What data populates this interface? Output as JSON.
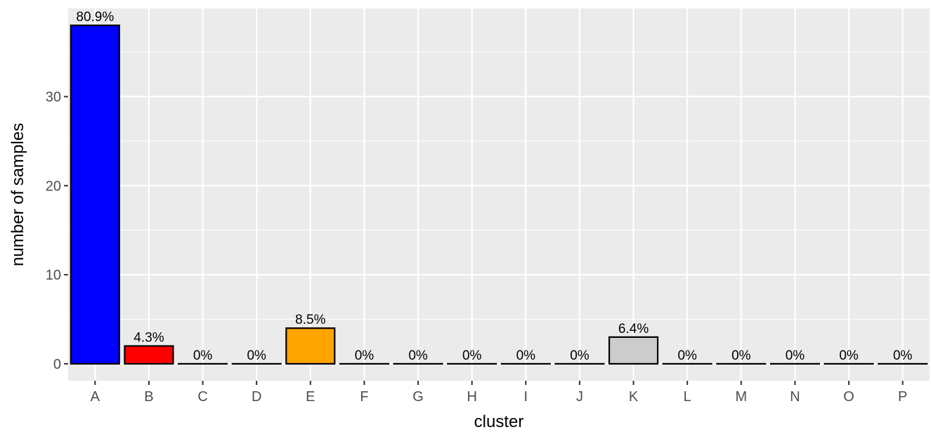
{
  "chart_data": {
    "type": "bar",
    "title": "",
    "xlabel": "cluster",
    "ylabel": "number of samples",
    "categories": [
      "A",
      "B",
      "C",
      "D",
      "E",
      "F",
      "G",
      "H",
      "I",
      "J",
      "K",
      "L",
      "M",
      "N",
      "O",
      "P"
    ],
    "values": [
      38,
      2,
      0,
      0,
      4,
      0,
      0,
      0,
      0,
      0,
      3,
      0,
      0,
      0,
      0,
      0
    ],
    "labels": [
      "80.9%",
      "4.3%",
      "0%",
      "0%",
      "8.5%",
      "0%",
      "0%",
      "0%",
      "0%",
      "0%",
      "6.4%",
      "0%",
      "0%",
      "0%",
      "0%",
      "0%"
    ],
    "colors": [
      "#0000ff",
      "#ff0000",
      "#ffffff",
      "#ffffff",
      "#ffa500",
      "#ffffff",
      "#ffffff",
      "#ffffff",
      "#ffffff",
      "#ffffff",
      "#cccccc",
      "#ffffff",
      "#ffffff",
      "#ffffff",
      "#ffffff",
      "#ffffff"
    ],
    "yticks": [
      0,
      10,
      20,
      30
    ],
    "ylim": [
      -1.9,
      39.9
    ],
    "grid": true,
    "panel_background": "#ebebeb",
    "grid_color": "#ffffff",
    "bar_border": "#000000"
  }
}
